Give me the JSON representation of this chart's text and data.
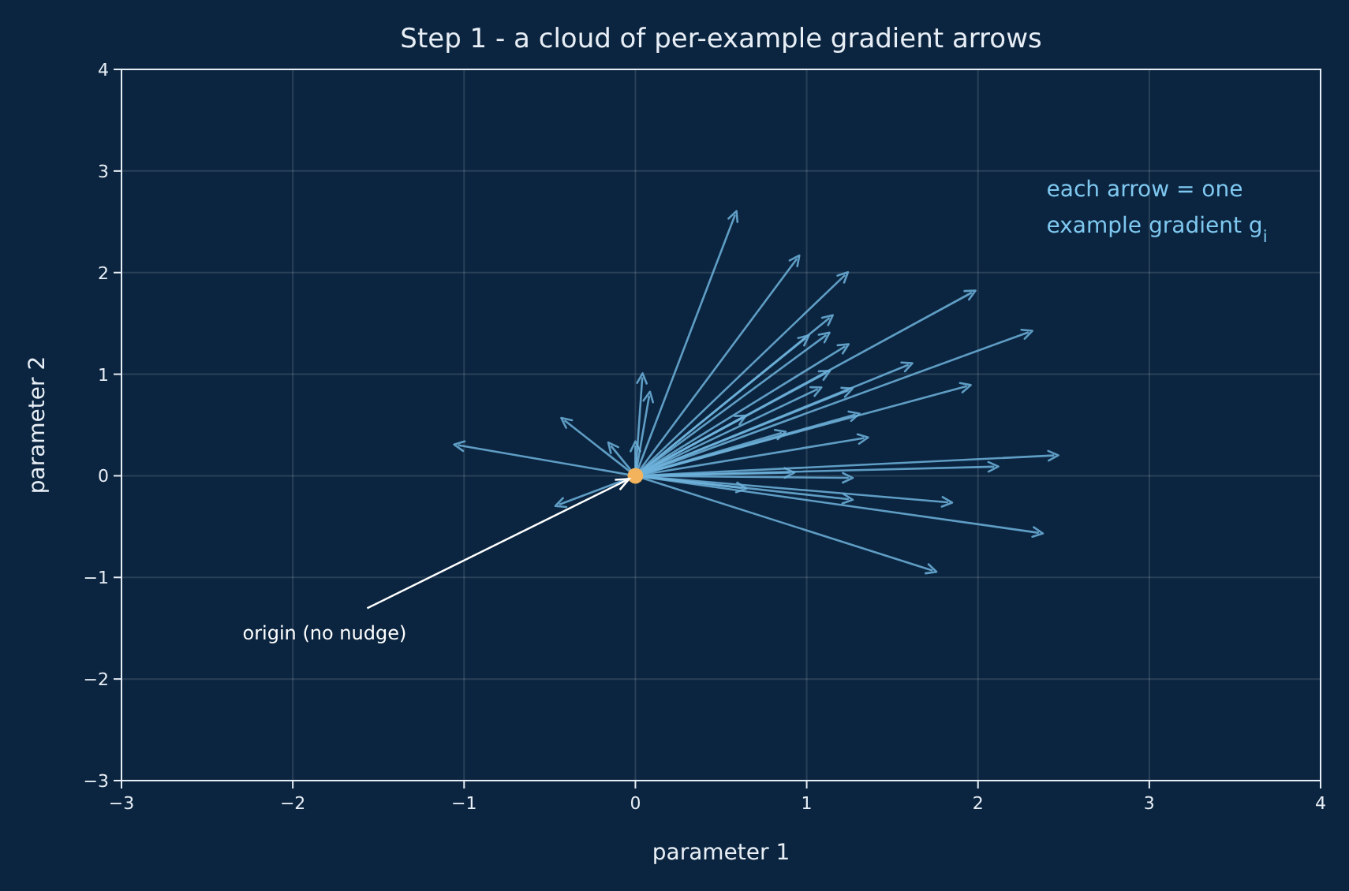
{
  "chart_data": {
    "type": "line",
    "title": "Step 1 - a cloud of per-example gradient arrows",
    "xlabel": "parameter 1",
    "ylabel": "parameter 2",
    "xlim": [
      -3,
      4
    ],
    "ylim": [
      -3,
      4
    ],
    "xticks": [
      -3,
      -2,
      -1,
      0,
      1,
      2,
      3,
      4
    ],
    "yticks": [
      -3,
      -2,
      -1,
      0,
      1,
      2,
      3,
      4
    ],
    "grid": true,
    "series": [
      {
        "color": "#6fb3dc",
        "x": [
          0,
          0.58
        ],
        "values": [
          0,
          2.56
        ]
      },
      {
        "color": "#6fb3dc",
        "x": [
          0,
          0.94
        ],
        "values": [
          0,
          2.13
        ]
      },
      {
        "color": "#6fb3dc",
        "x": [
          0,
          1.22
        ],
        "values": [
          0,
          1.97
        ]
      },
      {
        "color": "#6fb3dc",
        "x": [
          0,
          1.96
        ],
        "values": [
          0,
          1.8
        ]
      },
      {
        "color": "#6fb3dc",
        "x": [
          0,
          2.29
        ],
        "values": [
          0,
          1.41
        ]
      },
      {
        "color": "#6fb3dc",
        "x": [
          0,
          1.13
        ],
        "values": [
          0,
          1.55
        ]
      },
      {
        "color": "#6fb3dc",
        "x": [
          0,
          1.11
        ],
        "values": [
          0,
          1.38
        ]
      },
      {
        "color": "#6fb3dc",
        "x": [
          0,
          0.99
        ],
        "values": [
          0,
          1.35
        ]
      },
      {
        "color": "#6fb3dc",
        "x": [
          0,
          1.22
        ],
        "values": [
          0,
          1.27
        ]
      },
      {
        "color": "#6fb3dc",
        "x": [
          0,
          1.59
        ],
        "values": [
          0,
          1.09
        ]
      },
      {
        "color": "#6fb3dc",
        "x": [
          0,
          1.11
        ],
        "values": [
          0,
          1.01
        ]
      },
      {
        "color": "#6fb3dc",
        "x": [
          0,
          1.06
        ],
        "values": [
          0,
          0.85
        ]
      },
      {
        "color": "#6fb3dc",
        "x": [
          0,
          1.93
        ],
        "values": [
          0,
          0.88
        ]
      },
      {
        "color": "#6fb3dc",
        "x": [
          0,
          1.24
        ],
        "values": [
          0,
          0.84
        ]
      },
      {
        "color": "#6fb3dc",
        "x": [
          0,
          1.28
        ],
        "values": [
          0,
          0.6
        ]
      },
      {
        "color": "#6fb3dc",
        "x": [
          0,
          1.33
        ],
        "values": [
          0,
          0.37
        ]
      },
      {
        "color": "#6fb3dc",
        "x": [
          0,
          2.44
        ],
        "values": [
          0,
          0.2
        ]
      },
      {
        "color": "#6fb3dc",
        "x": [
          0,
          2.09
        ],
        "values": [
          0,
          0.09
        ]
      },
      {
        "color": "#6fb3dc",
        "x": [
          0,
          1.24
        ],
        "values": [
          0,
          -0.02
        ]
      },
      {
        "color": "#6fb3dc",
        "x": [
          0,
          1.82
        ],
        "values": [
          0,
          -0.26
        ]
      },
      {
        "color": "#6fb3dc",
        "x": [
          0,
          2.35
        ],
        "values": [
          0,
          -0.56
        ]
      },
      {
        "color": "#6fb3dc",
        "x": [
          0,
          1.73
        ],
        "values": [
          0,
          -0.93
        ]
      },
      {
        "color": "#6fb3dc",
        "x": [
          0,
          1.24
        ],
        "values": [
          0,
          -0.23
        ]
      },
      {
        "color": "#6fb3dc",
        "x": [
          0,
          0.9
        ],
        "values": [
          0,
          0.03
        ]
      },
      {
        "color": "#6fb3dc",
        "x": [
          0,
          0.85
        ],
        "values": [
          0,
          0.42
        ]
      },
      {
        "color": "#6fb3dc",
        "x": [
          0,
          0.62
        ],
        "values": [
          0,
          0.57
        ]
      },
      {
        "color": "#6fb3dc",
        "x": [
          0,
          -1.03
        ],
        "values": [
          0,
          0.3
        ]
      },
      {
        "color": "#6fb3dc",
        "x": [
          0,
          -0.41
        ],
        "values": [
          0,
          0.54
        ]
      },
      {
        "color": "#6fb3dc",
        "x": [
          0,
          0.04
        ],
        "values": [
          0,
          0.96
        ]
      },
      {
        "color": "#6fb3dc",
        "x": [
          0,
          0.08
        ],
        "values": [
          0,
          0.78
        ]
      },
      {
        "color": "#6fb3dc",
        "x": [
          0,
          -0.14
        ],
        "values": [
          0,
          0.29
        ]
      },
      {
        "color": "#6fb3dc",
        "x": [
          0,
          0.0
        ],
        "values": [
          0,
          0.29
        ]
      },
      {
        "color": "#6fb3dc",
        "x": [
          0,
          -0.44
        ],
        "values": [
          0,
          -0.28
        ]
      },
      {
        "color": "#6fb3dc",
        "x": [
          0,
          0.62
        ],
        "values": [
          0,
          -0.12
        ]
      },
      {
        "type": "scatter",
        "marker": "circle",
        "color": "#f2b35c",
        "x": [
          0
        ],
        "values": [
          0
        ]
      }
    ],
    "annotations": [
      {
        "text": "origin (no nudge)",
        "x": 0,
        "y": 0
      },
      "each arrow = one\nexample gradient g$_{i}$"
    ]
  }
}
